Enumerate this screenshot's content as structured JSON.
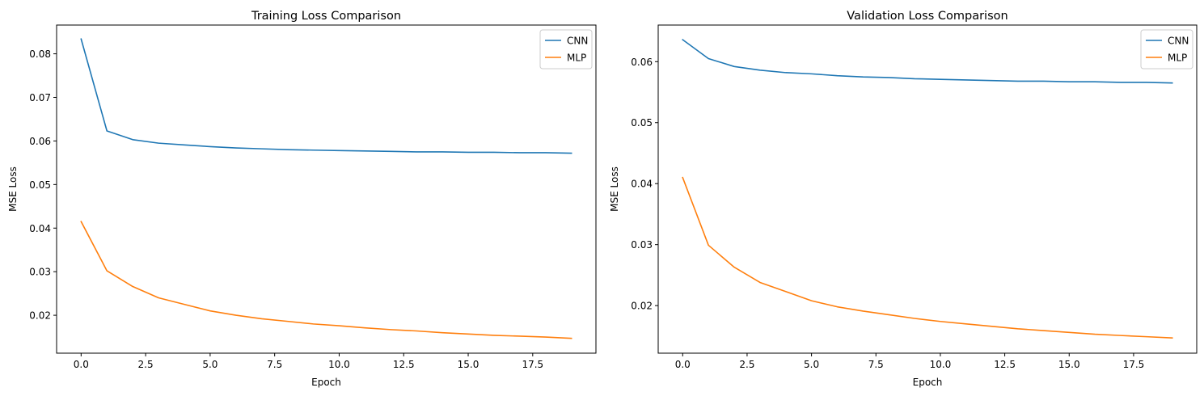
{
  "chart_data": [
    {
      "type": "line",
      "title": "Training Loss Comparison",
      "xlabel": "Epoch",
      "ylabel": "MSE Loss",
      "xlim": [
        -0.95,
        19.95
      ],
      "ylim": [
        0.0113,
        0.0866
      ],
      "xticks": [
        0.0,
        2.5,
        5.0,
        7.5,
        10.0,
        12.5,
        15.0,
        17.5
      ],
      "xtick_labels": [
        "0.0",
        "2.5",
        "5.0",
        "7.5",
        "10.0",
        "12.5",
        "15.0",
        "17.5"
      ],
      "yticks": [
        0.02,
        0.03,
        0.04,
        0.05,
        0.06,
        0.07,
        0.08
      ],
      "ytick_labels": [
        "0.02",
        "0.03",
        "0.04",
        "0.05",
        "0.06",
        "0.07",
        "0.08"
      ],
      "grid": false,
      "legend": "top-right",
      "x": [
        0,
        1,
        2,
        3,
        4,
        5,
        6,
        7,
        8,
        9,
        10,
        11,
        12,
        13,
        14,
        15,
        16,
        17,
        18,
        19
      ],
      "series": [
        {
          "name": "CNN",
          "color": "#1f77b4",
          "values": [
            0.0834,
            0.0623,
            0.0603,
            0.0595,
            0.0591,
            0.0587,
            0.0584,
            0.0582,
            0.058,
            0.0579,
            0.0578,
            0.0577,
            0.0576,
            0.0575,
            0.0575,
            0.0574,
            0.0574,
            0.0573,
            0.0573,
            0.0572
          ]
        },
        {
          "name": "MLP",
          "color": "#ff7f0e",
          "values": [
            0.0415,
            0.0302,
            0.0266,
            0.024,
            0.0225,
            0.021,
            0.02,
            0.0192,
            0.0186,
            0.018,
            0.0176,
            0.0171,
            0.0167,
            0.0164,
            0.016,
            0.0157,
            0.0154,
            0.0152,
            0.015,
            0.0147
          ]
        }
      ]
    },
    {
      "type": "line",
      "title": "Validation Loss Comparison",
      "xlabel": "Epoch",
      "ylabel": "MSE Loss",
      "xlim": [
        -0.95,
        19.95
      ],
      "ylim": [
        0.0122,
        0.066
      ],
      "xticks": [
        0.0,
        2.5,
        5.0,
        7.5,
        10.0,
        12.5,
        15.0,
        17.5
      ],
      "xtick_labels": [
        "0.0",
        "2.5",
        "5.0",
        "7.5",
        "10.0",
        "12.5",
        "15.0",
        "17.5"
      ],
      "yticks": [
        0.02,
        0.03,
        0.04,
        0.05,
        0.06
      ],
      "ytick_labels": [
        "0.02",
        "0.03",
        "0.04",
        "0.05",
        "0.06"
      ],
      "grid": false,
      "legend": "top-right",
      "x": [
        0,
        1,
        2,
        3,
        4,
        5,
        6,
        7,
        8,
        9,
        10,
        11,
        12,
        13,
        14,
        15,
        16,
        17,
        18,
        19
      ],
      "series": [
        {
          "name": "CNN",
          "color": "#1f77b4",
          "values": [
            0.0636,
            0.0605,
            0.0592,
            0.0586,
            0.0582,
            0.058,
            0.0577,
            0.0575,
            0.0574,
            0.0572,
            0.0571,
            0.057,
            0.0569,
            0.0568,
            0.0568,
            0.0567,
            0.0567,
            0.0566,
            0.0566,
            0.0565
          ]
        },
        {
          "name": "MLP",
          "color": "#ff7f0e",
          "values": [
            0.041,
            0.0299,
            0.0263,
            0.0238,
            0.0223,
            0.0208,
            0.0198,
            0.0191,
            0.0185,
            0.0179,
            0.0174,
            0.017,
            0.0166,
            0.0162,
            0.0159,
            0.0156,
            0.0153,
            0.0151,
            0.0149,
            0.0147
          ]
        }
      ]
    }
  ]
}
